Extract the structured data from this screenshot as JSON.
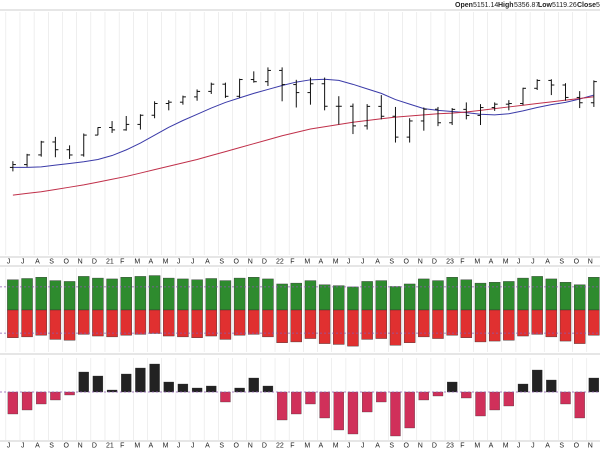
{
  "header": {
    "open_label": "Open",
    "open": 5151.14,
    "high_label": "High",
    "high": 5356.87,
    "low_label": "Low",
    "low": 5119.26,
    "close_label": "Close",
    "close": "5"
  },
  "chart_data": [
    {
      "type": "ohlc",
      "color": "#111111",
      "grid": true,
      "categories": [
        "J",
        "J",
        "A",
        "S",
        "O",
        "N",
        "D",
        "21",
        "F",
        "M",
        "A",
        "M",
        "J",
        "J",
        "A",
        "S",
        "O",
        "N",
        "D",
        "22",
        "F",
        "M",
        "A",
        "M",
        "J",
        "J",
        "A",
        "S",
        "O",
        "N",
        "D",
        "23",
        "F",
        "M",
        "A",
        "M",
        "J",
        "J",
        "A",
        "S",
        "O",
        "N"
      ],
      "open": [
        3050,
        3100,
        3271,
        3500,
        3363,
        3270,
        3622,
        3756,
        3714,
        3811,
        3973,
        4181,
        4204,
        4298,
        4395,
        4523,
        4308,
        4605,
        4567,
        4766,
        4516,
        4374,
        4530,
        4132,
        4132,
        3785,
        4130,
        3955,
        3586,
        3872,
        4080,
        3840,
        4077,
        3970,
        4109,
        4169,
        4180,
        4450,
        4589,
        4508,
        4288,
        4194
      ],
      "high": [
        3160,
        3290,
        3520,
        3590,
        3440,
        3650,
        3760,
        3870,
        3960,
        3990,
        4220,
        4240,
        4320,
        4430,
        4550,
        4550,
        4620,
        4750,
        4820,
        4820,
        4600,
        4640,
        4640,
        4310,
        4180,
        4170,
        4330,
        4120,
        3920,
        4110,
        4120,
        4100,
        4200,
        4170,
        4200,
        4240,
        4460,
        4610,
        4610,
        4540,
        4400,
        4590
      ],
      "low": [
        2980,
        3060,
        3240,
        3230,
        3200,
        3240,
        3620,
        3660,
        3700,
        3720,
        3920,
        4060,
        4160,
        4230,
        4350,
        4280,
        4280,
        4550,
        4490,
        4220,
        4110,
        4160,
        4060,
        3810,
        3640,
        3720,
        3900,
        3490,
        3490,
        3700,
        3780,
        3800,
        3900,
        3800,
        4050,
        4060,
        4150,
        4420,
        4330,
        4230,
        4100,
        4120
      ],
      "close": [
        3100,
        3271,
        3500,
        3363,
        3270,
        3622,
        3756,
        3714,
        3811,
        3973,
        4181,
        4204,
        4298,
        4395,
        4523,
        4308,
        4605,
        4567,
        4766,
        4516,
        4374,
        4530,
        4132,
        4132,
        3785,
        4130,
        3955,
        3586,
        3872,
        4080,
        3840,
        4077,
        3970,
        4109,
        4169,
        4180,
        4450,
        4589,
        4508,
        4288,
        4194,
        4568
      ],
      "overlays": [
        {
          "color": "#3a3aa8",
          "values": [
            3050,
            3050,
            3060,
            3090,
            3120,
            3150,
            3190,
            3260,
            3360,
            3480,
            3620,
            3760,
            3880,
            3990,
            4100,
            4200,
            4280,
            4360,
            4430,
            4500,
            4560,
            4600,
            4610,
            4590,
            4520,
            4440,
            4360,
            4250,
            4170,
            4090,
            4060,
            4040,
            4020,
            3990,
            3980,
            4000,
            4050,
            4110,
            4160,
            4200,
            4260,
            4330
          ]
        },
        {
          "color": "#c0304a",
          "values": [
            2560,
            2590,
            2620,
            2660,
            2700,
            2740,
            2790,
            2840,
            2890,
            2950,
            3010,
            3070,
            3130,
            3190,
            3260,
            3330,
            3400,
            3470,
            3540,
            3610,
            3670,
            3730,
            3770,
            3810,
            3850,
            3880,
            3910,
            3940,
            3960,
            3980,
            4000,
            4010,
            4030,
            4060,
            4090,
            4120,
            4150,
            4180,
            4210,
            4240,
            4270,
            4300
          ]
        }
      ],
      "ylim": [
        1500,
        5800
      ]
    },
    {
      "type": "diverging_bar",
      "ylim": [
        -100,
        100
      ],
      "reference_lines": [
        55,
        -55
      ],
      "reference_color": "#8a5ab0",
      "series": [
        {
          "color": "#2e8b2e",
          "values": [
            72,
            75,
            78,
            70,
            68,
            80,
            76,
            74,
            78,
            80,
            82,
            76,
            74,
            72,
            75,
            70,
            76,
            78,
            74,
            62,
            64,
            70,
            60,
            58,
            55,
            68,
            70,
            56,
            62,
            74,
            70,
            78,
            72,
            64,
            66,
            68,
            76,
            80,
            74,
            66,
            60,
            78
          ]
        },
        {
          "color": "#e03030",
          "values": [
            -66,
            -64,
            -60,
            -70,
            -72,
            -58,
            -62,
            -64,
            -60,
            -58,
            -56,
            -62,
            -64,
            -66,
            -62,
            -70,
            -60,
            -58,
            -64,
            -78,
            -76,
            -68,
            -80,
            -82,
            -86,
            -70,
            -68,
            -84,
            -78,
            -64,
            -68,
            -60,
            -66,
            -76,
            -74,
            -72,
            -62,
            -58,
            -64,
            -74,
            -80,
            -60
          ]
        }
      ]
    },
    {
      "type": "bar",
      "ylim": [
        -48,
        34
      ],
      "reference_lines": [
        0
      ],
      "reference_color": "#8a5ab0",
      "positive_color": "#222222",
      "negative_color": "#d0305a",
      "values": [
        -22,
        -18,
        -12,
        -8,
        -3,
        20,
        16,
        2,
        18,
        24,
        28,
        10,
        8,
        4,
        6,
        -10,
        4,
        14,
        6,
        -28,
        -22,
        -12,
        -26,
        -38,
        -42,
        -20,
        -10,
        -44,
        -36,
        -8,
        -4,
        10,
        -6,
        -24,
        -18,
        -14,
        8,
        22,
        12,
        -12,
        -26,
        14
      ]
    }
  ]
}
